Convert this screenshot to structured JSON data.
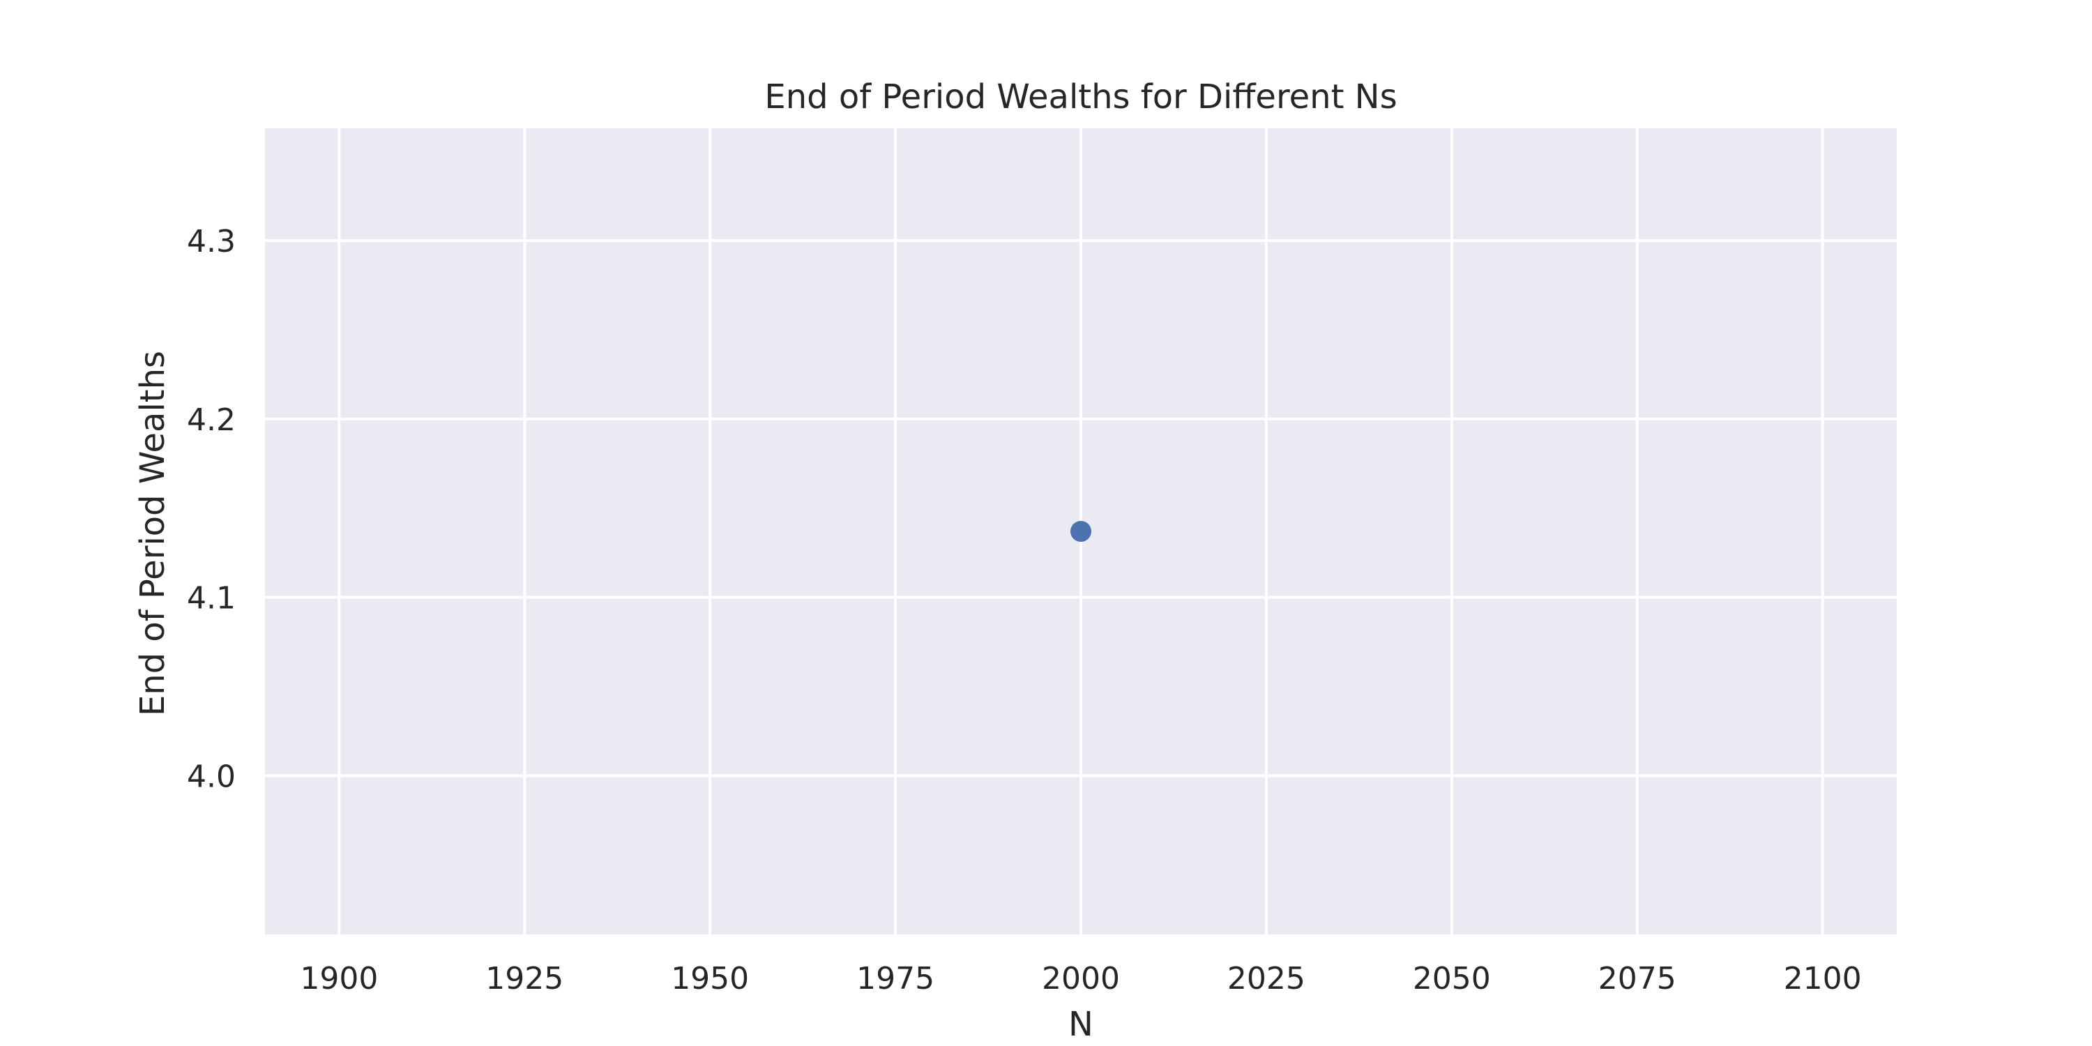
{
  "chart_data": {
    "type": "scatter",
    "title": "End of Period Wealths for Different Ns",
    "xlabel": "N",
    "ylabel": "End of Period Wealths",
    "xlim": [
      1890,
      2110
    ],
    "ylim": [
      3.911,
      4.363
    ],
    "xticks": [
      1900,
      1925,
      1950,
      1975,
      2000,
      2025,
      2050,
      2075,
      2100
    ],
    "yticks": [
      4.0,
      4.1,
      4.2,
      4.3
    ],
    "xtick_labels": [
      "1900",
      "1925",
      "1950",
      "1975",
      "2000",
      "2025",
      "2050",
      "2075",
      "2100"
    ],
    "ytick_labels": [
      "4.0",
      "4.1",
      "4.2",
      "4.3"
    ],
    "grid": true,
    "legend": "none",
    "colors": {
      "background": "#eaeaf2",
      "grid": "#ffffff",
      "marker": "#4c72b0"
    },
    "series": [
      {
        "x": [
          2000
        ],
        "y": [
          4.137
        ]
      }
    ]
  }
}
